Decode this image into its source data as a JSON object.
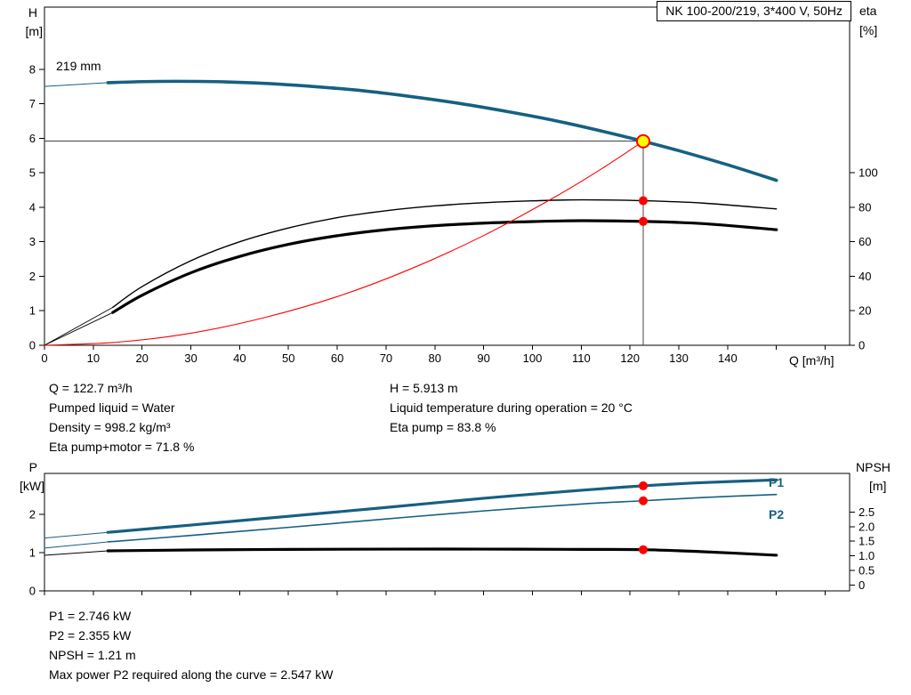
{
  "title_box": "NK 100-200/219, 3*400 V, 50Hz",
  "impeller_label": "219 mm",
  "axis_labels": {
    "h": "H",
    "h_unit": "[m]",
    "eta": "eta",
    "eta_unit": "[%]",
    "q": "Q [m³/h]",
    "p": "P",
    "p_unit": "[kW]",
    "npsh": "NPSH",
    "npsh_unit": "[m]"
  },
  "curve_labels": {
    "p1": "P1",
    "p2": "P2"
  },
  "colors": {
    "curve_blue": "#156082",
    "curve_black": "#000000",
    "system_curve_red": "#ff0000",
    "operating_point_fill": "#ffff00",
    "duty_dot_red": "#ff0000",
    "crosshair": "#444444"
  },
  "operating_point": {
    "q_m3h": 122.7,
    "h_m": 5.913,
    "eta_pump_pct": 83.8,
    "eta_pump_motor_pct": 71.8,
    "p1_kw": 2.746,
    "p2_kw": 2.355,
    "npsh_m": 1.21
  },
  "info_top_left": [
    "Q = 122.7 m³/h",
    "Pumped liquid = Water",
    "Density = 998.2 kg/m³",
    "Eta pump+motor = 71.8 %"
  ],
  "info_top_right": [
    "H = 5.913 m",
    "Liquid temperature during operation = 20 °C",
    "Eta pump = 83.8 %"
  ],
  "info_bottom": [
    "P1 = 2.746 kW",
    "P2 = 2.355 kW",
    "NPSH = 1.21 m",
    "Max power P2 required along the curve = 2.547 kW"
  ],
  "chart_data": [
    {
      "type": "line",
      "title": "NK 100-200/219, 3*400 V, 50Hz",
      "xlabel": "Q [m³/h]",
      "ylabel_left": "H [m]",
      "ylabel_right": "eta [%]",
      "x_range": [
        0,
        165
      ],
      "y_left_range": [
        0,
        9.8
      ],
      "y_right_range": [
        0,
        196
      ],
      "x_ticks": [
        {
          "v": 0,
          "label": "0"
        },
        {
          "v": 10,
          "label": "10"
        },
        {
          "v": 20,
          "label": "20"
        },
        {
          "v": 30,
          "label": "30"
        },
        {
          "v": 40,
          "label": "40"
        },
        {
          "v": 50,
          "label": "50"
        },
        {
          "v": 60,
          "label": "60"
        },
        {
          "v": 70,
          "label": "70"
        },
        {
          "v": 80,
          "label": "80"
        },
        {
          "v": 90,
          "label": "90"
        },
        {
          "v": 100,
          "label": "100"
        },
        {
          "v": 110,
          "label": "110"
        },
        {
          "v": 120,
          "label": "120"
        },
        {
          "v": 130,
          "label": "130"
        },
        {
          "v": 140,
          "label": "140"
        },
        {
          "v": 150
        },
        {
          "v": 160
        }
      ],
      "y_left_ticks": [
        {
          "v": 0,
          "label": "0"
        },
        {
          "v": 1,
          "label": "1"
        },
        {
          "v": 2,
          "label": "2"
        },
        {
          "v": 3,
          "label": "3"
        },
        {
          "v": 4,
          "label": "4"
        },
        {
          "v": 5,
          "label": "5"
        },
        {
          "v": 6,
          "label": "6"
        },
        {
          "v": 7,
          "label": "7"
        },
        {
          "v": 8,
          "label": "8"
        }
      ],
      "y_right_ticks": [
        {
          "v": 0,
          "label": "0"
        },
        {
          "v": 20,
          "label": "20"
        },
        {
          "v": 40,
          "label": "40"
        },
        {
          "v": 60,
          "label": "60"
        },
        {
          "v": 80,
          "label": "80"
        },
        {
          "v": 100,
          "label": "100"
        }
      ],
      "crosshairs": [
        {
          "axis": "left",
          "x1": 0,
          "y1": 5.913,
          "x2": 122.7,
          "y2": 5.913,
          "color": "#444444"
        },
        {
          "axis": "left",
          "x1": 122.7,
          "y1": 0,
          "x2": 122.7,
          "y2": 5.913,
          "color": "#444444"
        }
      ],
      "series": [
        {
          "name": "head-curve-leadin",
          "axis": "left",
          "color": "#156082",
          "width": 1,
          "points": [
            [
              0,
              7.5
            ],
            [
              13,
              7.61
            ]
          ]
        },
        {
          "name": "head-curve-219mm",
          "axis": "left",
          "color": "#156082",
          "width": 3.6,
          "points": [
            [
              13,
              7.61
            ],
            [
              20,
              7.64
            ],
            [
              27,
              7.65
            ],
            [
              35,
              7.64
            ],
            [
              45,
              7.59
            ],
            [
              55,
              7.5
            ],
            [
              65,
              7.38
            ],
            [
              75,
              7.21
            ],
            [
              85,
              7.01
            ],
            [
              95,
              6.77
            ],
            [
              105,
              6.5
            ],
            [
              115,
              6.18
            ],
            [
              122.7,
              5.913
            ],
            [
              130,
              5.64
            ],
            [
              140,
              5.23
            ],
            [
              150,
              4.78
            ]
          ]
        },
        {
          "name": "eta-pump-leadin",
          "axis": "right",
          "color": "#000000",
          "width": 0.9,
          "points": [
            [
              0,
              0
            ],
            [
              14,
              22
            ]
          ]
        },
        {
          "name": "eta-pump-curve",
          "axis": "right",
          "color": "#000000",
          "width": 1.4,
          "points": [
            [
              14,
              22
            ],
            [
              20,
              34
            ],
            [
              30,
              49
            ],
            [
              40,
              60
            ],
            [
              50,
              68
            ],
            [
              60,
              74
            ],
            [
              70,
              78
            ],
            [
              80,
              80.8
            ],
            [
              90,
              82.6
            ],
            [
              100,
              83.7
            ],
            [
              110,
              84.3
            ],
            [
              122.7,
              83.8
            ],
            [
              135,
              82.4
            ],
            [
              150,
              79
            ]
          ]
        },
        {
          "name": "eta-pump-motor-leadin",
          "axis": "right",
          "color": "#000000",
          "width": 0.9,
          "points": [
            [
              0,
              0
            ],
            [
              14,
              19
            ]
          ]
        },
        {
          "name": "eta-pump-motor-curve",
          "axis": "right",
          "color": "#000000",
          "width": 3.2,
          "points": [
            [
              14,
              19
            ],
            [
              20,
              29
            ],
            [
              30,
              42
            ],
            [
              40,
              51.5
            ],
            [
              50,
              58.5
            ],
            [
              60,
              63.5
            ],
            [
              70,
              67
            ],
            [
              80,
              69.3
            ],
            [
              90,
              70.8
            ],
            [
              100,
              71.7
            ],
            [
              110,
              72.2
            ],
            [
              122.7,
              71.8
            ],
            [
              135,
              70.5
            ],
            [
              150,
              67
            ]
          ]
        },
        {
          "name": "system-curve",
          "axis": "left",
          "color": "#ff0000",
          "width": 1.1,
          "points": [
            [
              0,
              0
            ],
            [
              15,
              0.09
            ],
            [
              30,
              0.35
            ],
            [
              45,
              0.8
            ],
            [
              60,
              1.41
            ],
            [
              75,
              2.21
            ],
            [
              90,
              3.18
            ],
            [
              105,
              4.33
            ],
            [
              115,
              5.19
            ],
            [
              122.7,
              5.913
            ]
          ]
        }
      ],
      "markers": [
        {
          "name": "operating-point",
          "axis": "left",
          "x": 122.7,
          "y": 5.913,
          "r": 7,
          "fill": "#ffff00",
          "stroke": "#ff0000",
          "stroke_width": 2
        },
        {
          "name": "eta-pump-duty-dot",
          "axis": "right",
          "x": 122.7,
          "y": 83.8,
          "r": 5,
          "fill": "#ff0000"
        },
        {
          "name": "eta-pump-motor-duty-dot",
          "axis": "right",
          "x": 122.7,
          "y": 71.8,
          "r": 5,
          "fill": "#ff0000"
        }
      ]
    },
    {
      "type": "line",
      "title": "Power and NPSH curves",
      "ylabel_left": "P [kW]",
      "ylabel_right": "NPSH [m]",
      "x_range": [
        0,
        165
      ],
      "y_left_range": [
        0,
        3.07
      ],
      "y_right_range": [
        -0.2,
        3.82
      ],
      "x_ticks": [
        {
          "v": 0
        },
        {
          "v": 10
        },
        {
          "v": 20
        },
        {
          "v": 30
        },
        {
          "v": 40
        },
        {
          "v": 50
        },
        {
          "v": 60
        },
        {
          "v": 70
        },
        {
          "v": 80
        },
        {
          "v": 90
        },
        {
          "v": 100
        },
        {
          "v": 110
        },
        {
          "v": 120
        },
        {
          "v": 130
        },
        {
          "v": 140
        },
        {
          "v": 150
        },
        {
          "v": 160
        }
      ],
      "y_left_ticks": [
        {
          "v": 0,
          "label": "0"
        },
        {
          "v": 1,
          "label": "1"
        },
        {
          "v": 2,
          "label": "2"
        }
      ],
      "y_right_ticks": [
        {
          "v": 0,
          "label": "0"
        },
        {
          "v": 0.5,
          "label": "0.5"
        },
        {
          "v": 1,
          "label": "1.0"
        },
        {
          "v": 1.5,
          "label": "1.5"
        },
        {
          "v": 2,
          "label": "2.0"
        },
        {
          "v": 2.5,
          "label": "2.5"
        }
      ],
      "series": [
        {
          "name": "p1-leadin",
          "axis": "left",
          "color": "#156082",
          "width": 1,
          "points": [
            [
              0,
              1.38
            ],
            [
              13,
              1.53
            ]
          ]
        },
        {
          "name": "p1-curve",
          "axis": "left",
          "color": "#156082",
          "width": 3.2,
          "points": [
            [
              13,
              1.53
            ],
            [
              30,
              1.72
            ],
            [
              50,
              1.95
            ],
            [
              70,
              2.18
            ],
            [
              90,
              2.42
            ],
            [
              110,
              2.63
            ],
            [
              122.7,
              2.746
            ],
            [
              135,
              2.83
            ],
            [
              150,
              2.9
            ]
          ]
        },
        {
          "name": "p2-leadin",
          "axis": "left",
          "color": "#156082",
          "width": 1,
          "points": [
            [
              0,
              1.12
            ],
            [
              13,
              1.28
            ]
          ]
        },
        {
          "name": "p2-curve",
          "axis": "left",
          "color": "#156082",
          "width": 1.6,
          "points": [
            [
              13,
              1.28
            ],
            [
              30,
              1.45
            ],
            [
              50,
              1.66
            ],
            [
              70,
              1.88
            ],
            [
              90,
              2.09
            ],
            [
              110,
              2.27
            ],
            [
              122.7,
              2.355
            ],
            [
              135,
              2.44
            ],
            [
              150,
              2.52
            ]
          ]
        },
        {
          "name": "npsh-leadin",
          "axis": "right",
          "color": "#000000",
          "width": 1,
          "points": [
            [
              0,
              1.02
            ],
            [
              13,
              1.17
            ]
          ]
        },
        {
          "name": "npsh-curve",
          "axis": "right",
          "color": "#000000",
          "width": 3.2,
          "points": [
            [
              13,
              1.17
            ],
            [
              30,
              1.2
            ],
            [
              50,
              1.22
            ],
            [
              70,
              1.23
            ],
            [
              90,
              1.23
            ],
            [
              110,
              1.22
            ],
            [
              122.7,
              1.21
            ],
            [
              135,
              1.14
            ],
            [
              150,
              1.02
            ]
          ]
        }
      ],
      "markers": [
        {
          "name": "p1-duty-dot",
          "axis": "left",
          "x": 122.7,
          "y": 2.746,
          "r": 5,
          "fill": "#ff0000"
        },
        {
          "name": "p2-duty-dot",
          "axis": "left",
          "x": 122.7,
          "y": 2.355,
          "r": 5,
          "fill": "#ff0000"
        },
        {
          "name": "npsh-duty-dot",
          "axis": "right",
          "x": 122.7,
          "y": 1.21,
          "r": 5,
          "fill": "#ff0000"
        }
      ]
    }
  ]
}
